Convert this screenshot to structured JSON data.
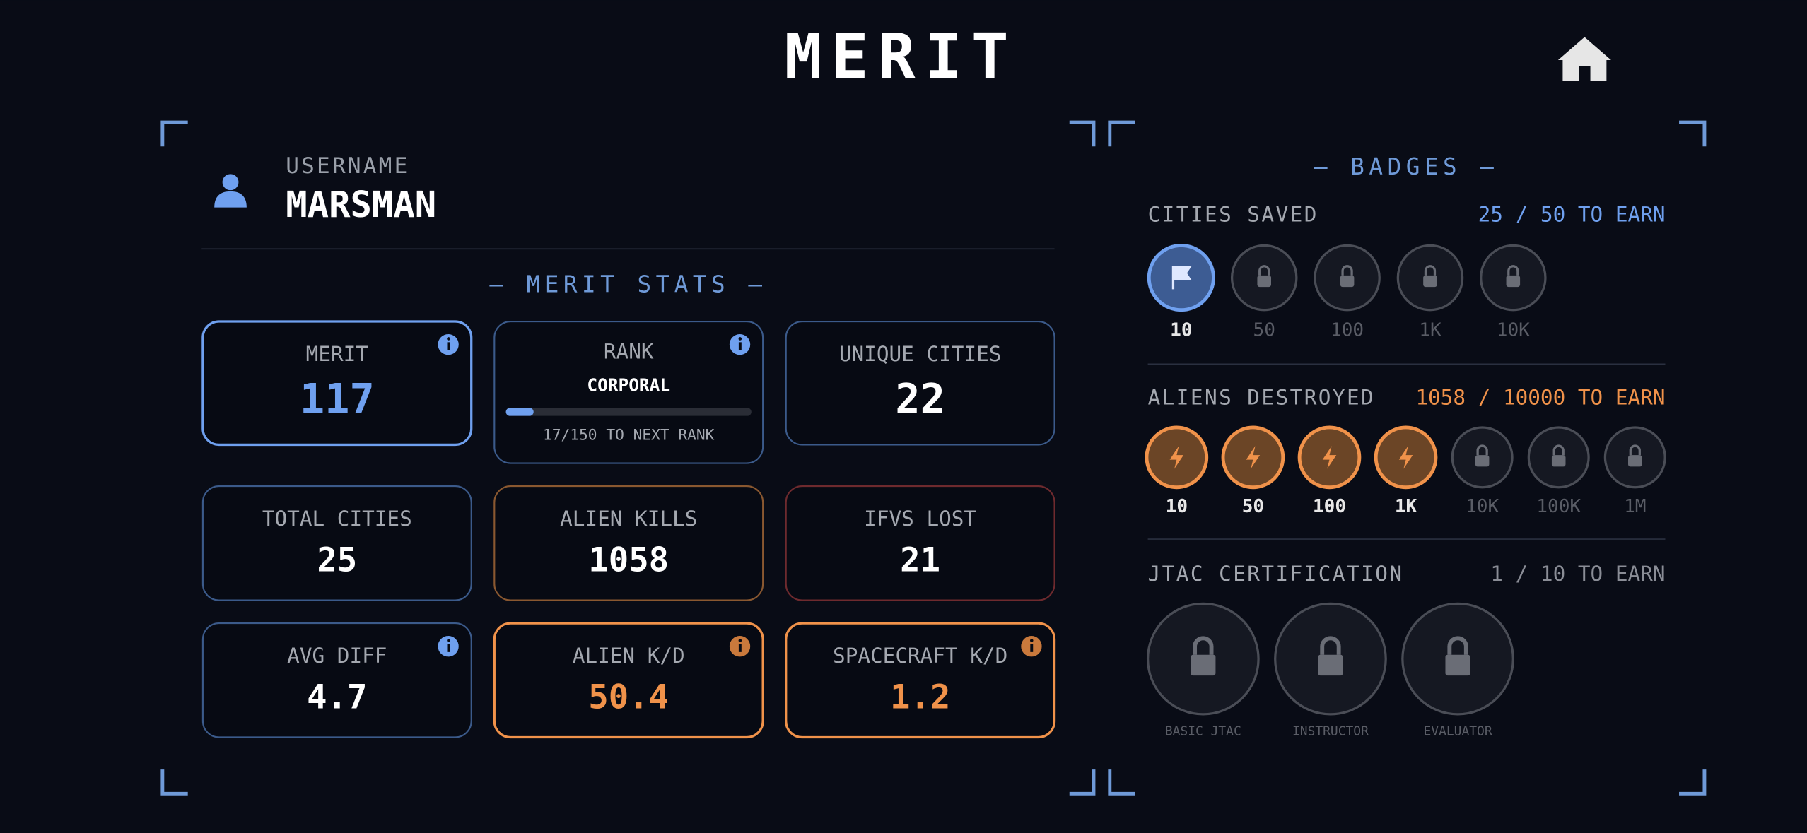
{
  "header": {
    "title": "MERIT"
  },
  "profile": {
    "label": "USERNAME",
    "username": "MARSMAN"
  },
  "stats": {
    "title": "— MERIT STATS —",
    "cards": [
      {
        "label": "MERIT",
        "value": "117"
      },
      {
        "label": "RANK",
        "rank": "CORPORAL",
        "progress": "17/150 TO NEXT RANK"
      },
      {
        "label": "UNIQUE CITIES",
        "value": "22"
      },
      {
        "label": "TOTAL CITIES",
        "value": "25"
      },
      {
        "label": "ALIEN KILLS",
        "value": "1058"
      },
      {
        "label": "IFVS LOST",
        "value": "21"
      },
      {
        "label": "AVG DIFF",
        "value": "4.7"
      },
      {
        "label": "ALIEN K/D",
        "value": "50.4"
      },
      {
        "label": "SPACECRAFT K/D",
        "value": "1.2"
      }
    ]
  },
  "badges": {
    "title": "— BADGES —",
    "groups": [
      {
        "name": "CITIES SAVED",
        "progress": "25 / 50 TO EARN",
        "earned": 1,
        "tiers": [
          "10",
          "50",
          "100",
          "1K",
          "10K"
        ]
      },
      {
        "name": "ALIENS DESTROYED",
        "progress": "1058 / 10000 TO EARN",
        "earned": 4,
        "tiers": [
          "10",
          "50",
          "100",
          "1K",
          "10K",
          "100K",
          "1M"
        ]
      },
      {
        "name": "JTAC CERTIFICATION",
        "progress": "1 / 10 TO EARN",
        "earned": 0,
        "tiers": [
          "BASIC JTAC",
          "INSTRUCTOR",
          "EVALUATOR"
        ]
      }
    ]
  }
}
